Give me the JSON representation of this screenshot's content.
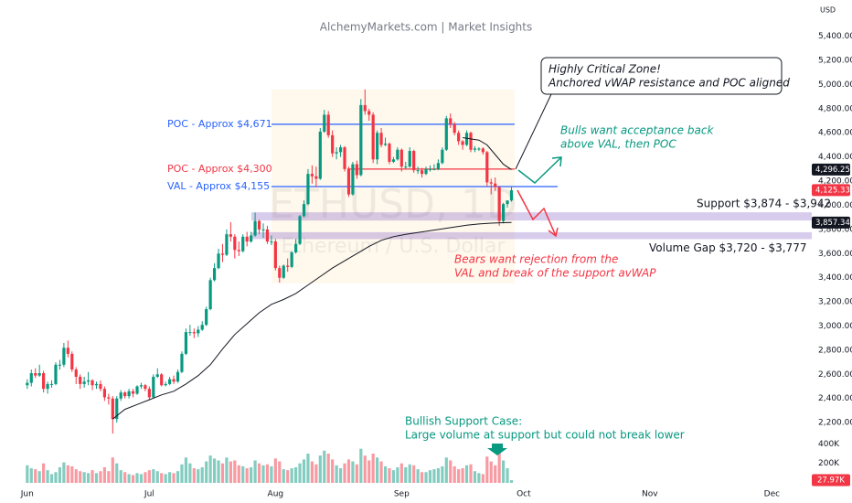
{
  "chart_data": {
    "type": "candlestick",
    "title": "AlchemyMarkets.com | Market Insights",
    "watermark": "ETHUSD, 1D",
    "watermark_subtitle": "Ethereum / U.S. Dollar",
    "currency": "USD",
    "xlim": [
      -6.7,
      192.8
    ],
    "xticks": [
      {
        "value": 0,
        "label": "Jun"
      },
      {
        "value": 30,
        "label": "Jul"
      },
      {
        "value": 61,
        "label": "Aug"
      },
      {
        "value": 92,
        "label": "Sep"
      },
      {
        "value": 122,
        "label": "Oct"
      },
      {
        "value": 153,
        "label": "Nov"
      },
      {
        "value": 183,
        "label": "Dec"
      }
    ],
    "ylim": [
      2080,
      5700
    ],
    "yticks": [
      {
        "value": 2200,
        "label": "2,200.00"
      },
      {
        "value": 2400,
        "label": "2,400.00"
      },
      {
        "value": 2600,
        "label": "2,600.00"
      },
      {
        "value": 2800,
        "label": "2,800.00"
      },
      {
        "value": 3000,
        "label": "3,000.00"
      },
      {
        "value": 3200,
        "label": "3,200.00"
      },
      {
        "value": 3400,
        "label": "3,400.00"
      },
      {
        "value": 3600,
        "label": "3,600.00"
      },
      {
        "value": 3800,
        "label": "3,800.00"
      },
      {
        "value": 4000,
        "label": "4,000.00"
      },
      {
        "value": 4200,
        "label": "4,200.00"
      },
      {
        "value": 4400,
        "label": "4,400.00"
      },
      {
        "value": 4600,
        "label": "4,600.00"
      },
      {
        "value": 4800,
        "label": "4,800.00"
      },
      {
        "value": 5000,
        "label": "5,000.00"
      },
      {
        "value": 5200,
        "label": "5,200.00"
      },
      {
        "value": 5400,
        "label": "5,400.00"
      }
    ],
    "candles": {
      "up_color": "#089981",
      "down_color": "#f23645",
      "x": [
        0,
        1,
        2,
        3,
        4,
        5,
        6,
        7,
        8,
        9,
        10,
        11,
        12,
        13,
        14,
        15,
        16,
        17,
        18,
        19,
        20,
        21,
        22,
        23,
        24,
        25,
        26,
        27,
        28,
        29,
        30,
        31,
        32,
        33,
        34,
        35,
        36,
        37,
        38,
        39,
        40,
        41,
        42,
        43,
        44,
        45,
        46,
        47,
        48,
        49,
        50,
        51,
        52,
        53,
        54,
        55,
        56,
        57,
        58,
        59,
        60,
        61,
        62,
        63,
        64,
        65,
        66,
        67,
        68,
        69,
        70,
        71,
        72,
        73,
        74,
        75,
        76,
        77,
        78,
        79,
        80,
        81,
        82,
        83,
        84,
        85,
        86,
        87,
        88,
        89,
        90,
        91,
        92,
        93,
        94,
        95,
        96,
        97,
        98,
        99,
        100,
        101,
        102,
        103,
        104,
        105,
        106,
        107,
        108,
        109,
        110,
        111,
        112,
        113,
        114,
        115,
        116,
        117,
        118,
        119
      ],
      "ohlc": [
        [
          2510,
          2560,
          2480,
          2530
        ],
        [
          2530,
          2640,
          2500,
          2610
        ],
        [
          2610,
          2650,
          2570,
          2590
        ],
        [
          2590,
          2680,
          2580,
          2610
        ],
        [
          2610,
          2630,
          2450,
          2480
        ],
        [
          2480,
          2540,
          2440,
          2520
        ],
        [
          2520,
          2550,
          2490,
          2520
        ],
        [
          2520,
          2700,
          2510,
          2680
        ],
        [
          2680,
          2720,
          2640,
          2680
        ],
        [
          2680,
          2860,
          2660,
          2820
        ],
        [
          2820,
          2880,
          2740,
          2770
        ],
        [
          2770,
          2790,
          2620,
          2640
        ],
        [
          2640,
          2660,
          2520,
          2580
        ],
        [
          2580,
          2600,
          2480,
          2520
        ],
        [
          2520,
          2580,
          2490,
          2540
        ],
        [
          2540,
          2620,
          2510,
          2550
        ],
        [
          2550,
          2560,
          2470,
          2510
        ],
        [
          2510,
          2540,
          2480,
          2520
        ],
        [
          2520,
          2550,
          2460,
          2480
        ],
        [
          2480,
          2500,
          2380,
          2410
        ],
        [
          2410,
          2440,
          2350,
          2400
        ],
        [
          2400,
          2420,
          2110,
          2230
        ],
        [
          2230,
          2420,
          2200,
          2400
        ],
        [
          2400,
          2470,
          2380,
          2450
        ],
        [
          2450,
          2460,
          2400,
          2420
        ],
        [
          2420,
          2480,
          2400,
          2460
        ],
        [
          2460,
          2480,
          2410,
          2440
        ],
        [
          2440,
          2510,
          2430,
          2500
        ],
        [
          2500,
          2530,
          2480,
          2510
        ],
        [
          2510,
          2520,
          2460,
          2480
        ],
        [
          2480,
          2500,
          2390,
          2410
        ],
        [
          2410,
          2600,
          2400,
          2580
        ],
        [
          2580,
          2650,
          2570,
          2600
        ],
        [
          2600,
          2610,
          2500,
          2510
        ],
        [
          2510,
          2540,
          2500,
          2520
        ],
        [
          2520,
          2580,
          2510,
          2560
        ],
        [
          2560,
          2590,
          2520,
          2540
        ],
        [
          2540,
          2640,
          2530,
          2620
        ],
        [
          2620,
          2790,
          2610,
          2770
        ],
        [
          2770,
          2980,
          2760,
          2950
        ],
        [
          2950,
          3010,
          2920,
          2950
        ],
        [
          2950,
          2980,
          2900,
          2940
        ],
        [
          2940,
          3000,
          2910,
          2970
        ],
        [
          2970,
          3040,
          2960,
          3010
        ],
        [
          3010,
          3160,
          3000,
          3140
        ],
        [
          3140,
          3400,
          3130,
          3380
        ],
        [
          3380,
          3520,
          3370,
          3480
        ],
        [
          3480,
          3640,
          3470,
          3600
        ],
        [
          3600,
          3680,
          3530,
          3590
        ],
        [
          3590,
          3800,
          3580,
          3760
        ],
        [
          3760,
          3860,
          3700,
          3740
        ],
        [
          3740,
          3760,
          3560,
          3630
        ],
        [
          3630,
          3700,
          3580,
          3620
        ],
        [
          3620,
          3760,
          3610,
          3740
        ],
        [
          3740,
          3780,
          3660,
          3700
        ],
        [
          3700,
          3780,
          3690,
          3750
        ],
        [
          3750,
          3940,
          3740,
          3870
        ],
        [
          3870,
          3880,
          3760,
          3800
        ],
        [
          3800,
          3850,
          3730,
          3800
        ],
        [
          3800,
          3830,
          3680,
          3700
        ],
        [
          3700,
          3750,
          3670,
          3700
        ],
        [
          3700,
          3720,
          3460,
          3480
        ],
        [
          3480,
          3500,
          3360,
          3400
        ],
        [
          3400,
          3510,
          3390,
          3500
        ],
        [
          3500,
          3560,
          3450,
          3490
        ],
        [
          3490,
          3620,
          3480,
          3610
        ],
        [
          3610,
          3720,
          3600,
          3680
        ],
        [
          3680,
          3920,
          3670,
          3910
        ],
        [
          3910,
          4040,
          3900,
          4010
        ],
        [
          4010,
          4300,
          4000,
          4260
        ],
        [
          4260,
          4330,
          4180,
          4240
        ],
        [
          4240,
          4320,
          4150,
          4220
        ],
        [
          4220,
          4640,
          4210,
          4610
        ],
        [
          4610,
          4790,
          4600,
          4750
        ],
        [
          4750,
          4780,
          4560,
          4580
        ],
        [
          4580,
          4620,
          4400,
          4430
        ],
        [
          4430,
          4480,
          4380,
          4440
        ],
        [
          4440,
          4500,
          4400,
          4480
        ],
        [
          4480,
          4490,
          4280,
          4300
        ],
        [
          4300,
          4320,
          4070,
          4090
        ],
        [
          4090,
          4360,
          4080,
          4340
        ],
        [
          4340,
          4370,
          4220,
          4250
        ],
        [
          4250,
          4880,
          4240,
          4830
        ],
        [
          4830,
          4960,
          4750,
          4780
        ],
        [
          4780,
          4800,
          4700,
          4750
        ],
        [
          4750,
          4770,
          4350,
          4380
        ],
        [
          4380,
          4620,
          4340,
          4600
        ],
        [
          4600,
          4640,
          4480,
          4500
        ],
        [
          4500,
          4560,
          4490,
          4510
        ],
        [
          4510,
          4520,
          4340,
          4360
        ],
        [
          4360,
          4400,
          4350,
          4380
        ],
        [
          4380,
          4480,
          4370,
          4460
        ],
        [
          4460,
          4470,
          4280,
          4320
        ],
        [
          4320,
          4360,
          4300,
          4320
        ],
        [
          4320,
          4480,
          4310,
          4450
        ],
        [
          4450,
          4460,
          4270,
          4290
        ],
        [
          4290,
          4320,
          4260,
          4290
        ],
        [
          4290,
          4310,
          4230,
          4260
        ],
        [
          4260,
          4320,
          4250,
          4300
        ],
        [
          4300,
          4330,
          4280,
          4300
        ],
        [
          4300,
          4340,
          4290,
          4300
        ],
        [
          4300,
          4380,
          4290,
          4350
        ],
        [
          4350,
          4480,
          4340,
          4460
        ],
        [
          4460,
          4740,
          4450,
          4720
        ],
        [
          4720,
          4760,
          4640,
          4670
        ],
        [
          4670,
          4690,
          4580,
          4600
        ],
        [
          4600,
          4620,
          4500,
          4530
        ],
        [
          4530,
          4540,
          4460,
          4500
        ],
        [
          4500,
          4620,
          4490,
          4600
        ],
        [
          4600,
          4610,
          4440,
          4460
        ],
        [
          4460,
          4490,
          4440,
          4470
        ],
        [
          4470,
          4480,
          4450,
          4470
        ],
        [
          4470,
          4480,
          4420,
          4440
        ],
        [
          4440,
          4450,
          4160,
          4190
        ],
        [
          4190,
          4220,
          4090,
          4180
        ],
        [
          4180,
          4230,
          4120,
          4150
        ],
        [
          4150,
          4160,
          3830,
          3870
        ],
        [
          3870,
          4020,
          3850,
          4010
        ],
        [
          4010,
          4040,
          3980,
          4040
        ],
        [
          4040,
          4150,
          4030,
          4125
        ]
      ]
    },
    "volume": {
      "ylim": [
        0,
        450000
      ],
      "yticks": [
        {
          "value": 200000,
          "label": "200K"
        },
        {
          "value": 400000,
          "label": "400K"
        }
      ],
      "values": [
        180000,
        150000,
        140000,
        120000,
        200000,
        130000,
        90000,
        110000,
        160000,
        210000,
        180000,
        170000,
        140000,
        120000,
        110000,
        100000,
        130000,
        100000,
        120000,
        160000,
        120000,
        260000,
        200000,
        130000,
        110000,
        90000,
        80000,
        100000,
        90000,
        110000,
        130000,
        140000,
        120000,
        100000,
        90000,
        110000,
        100000,
        120000,
        190000,
        260000,
        200000,
        150000,
        140000,
        160000,
        220000,
        280000,
        250000,
        230000,
        200000,
        260000,
        220000,
        230000,
        180000,
        170000,
        150000,
        160000,
        230000,
        200000,
        180000,
        190000,
        170000,
        250000,
        220000,
        140000,
        130000,
        150000,
        160000,
        200000,
        240000,
        300000,
        220000,
        190000,
        280000,
        330000,
        300000,
        240000,
        180000,
        150000,
        200000,
        240000,
        220000,
        190000,
        350000,
        280000,
        230000,
        300000,
        260000,
        220000,
        170000,
        150000,
        130000,
        160000,
        200000,
        160000,
        190000,
        180000,
        140000,
        110000,
        110000,
        130000,
        140000,
        150000,
        170000,
        260000,
        230000,
        170000,
        140000,
        150000,
        180000,
        190000,
        120000,
        100000,
        90000,
        270000,
        220000,
        180000,
        320000,
        230000,
        150000,
        27970
      ],
      "tag": {
        "value": 27970,
        "label": "27.97K"
      }
    },
    "support_vwap": {
      "color": "#131722",
      "x": [
        21,
        24,
        27,
        30,
        33,
        36,
        39,
        42,
        45,
        48,
        51,
        54,
        57,
        60,
        63,
        66,
        69,
        72,
        75,
        78,
        81,
        84,
        87,
        90,
        93,
        96,
        99,
        102,
        105,
        108,
        111,
        114,
        117,
        119
      ],
      "values": [
        2230,
        2310,
        2350,
        2390,
        2430,
        2460,
        2520,
        2590,
        2680,
        2810,
        2930,
        3020,
        3110,
        3180,
        3220,
        3270,
        3340,
        3410,
        3480,
        3540,
        3600,
        3660,
        3710,
        3740,
        3760,
        3775,
        3790,
        3805,
        3820,
        3835,
        3845,
        3852,
        3856,
        3857.34
      ]
    },
    "resistance_vwap": {
      "color": "#131722",
      "x": [
        107,
        109,
        111,
        113,
        115,
        117,
        119
      ],
      "values": [
        4560,
        4550,
        4540,
        4500,
        4420,
        4340,
        4296.25
      ]
    },
    "levels": [
      {
        "label": "POC - Approx $4,671",
        "value": 4671,
        "color": "#2962ff"
      },
      {
        "label": "POC - Approx $4,300",
        "value": 4300,
        "color": "#f23645"
      },
      {
        "label": "VAL - Approx $4,155",
        "value": 4155,
        "color": "#2962ff"
      }
    ],
    "zones": [
      {
        "label": "Support $3,874 - $3,942",
        "low": 3874,
        "high": 3942
      },
      {
        "label": "Volume Gap $3,720 - $3,777",
        "low": 3720,
        "high": 3777
      }
    ],
    "price_tags": [
      {
        "value": 4296.25,
        "label": "4,296.25",
        "color": "#131722"
      },
      {
        "value": 4125.33,
        "label": "4,125.33",
        "color": "#f23645"
      },
      {
        "value": 3857.34,
        "label": "3,857.34",
        "color": "#131722"
      }
    ],
    "notes": [
      {
        "lines": [
          "Highly Critical Zone!",
          "Anchored vWAP resistance and POC aligned"
        ],
        "color": "#131722"
      },
      {
        "lines": [
          "Bulls want acceptance back",
          "above VAL, then POC"
        ],
        "color": "#089981"
      },
      {
        "lines": [
          "Bears want rejection from the",
          "VAL and break of the support avWAP"
        ],
        "color": "#f23645"
      },
      {
        "lines": [
          "Bullish Support Case:",
          "Large volume at support but could not break lower"
        ],
        "color": "#089981"
      }
    ]
  }
}
